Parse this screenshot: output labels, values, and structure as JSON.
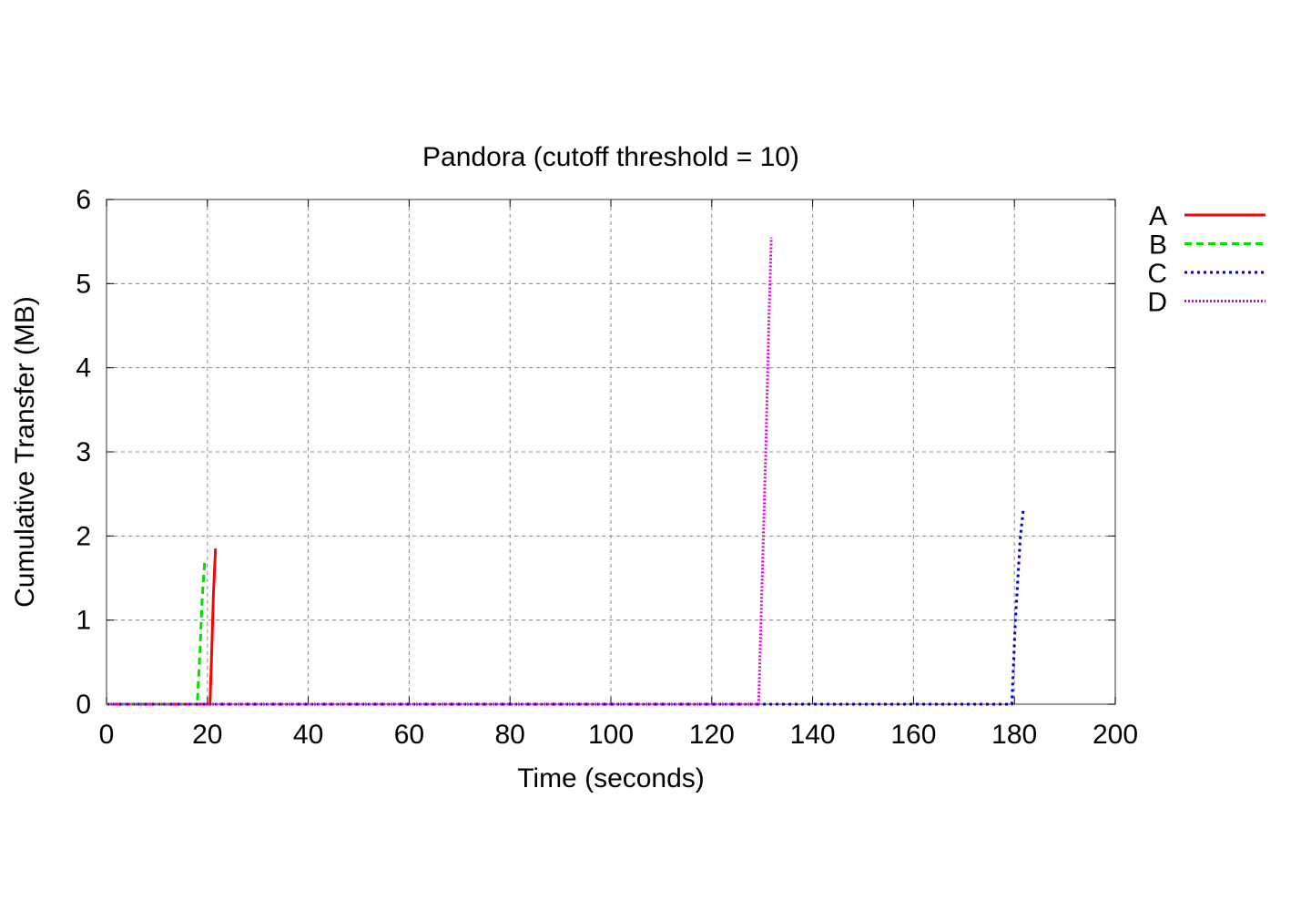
{
  "chart_data": {
    "type": "line",
    "title": "Pandora (cutoff threshold = 10)",
    "xlabel": "Time (seconds)",
    "ylabel": "Cumulative Transfer (MB)",
    "xlim": [
      0,
      200
    ],
    "ylim": [
      0,
      6
    ],
    "xticks": [
      0,
      20,
      40,
      60,
      80,
      100,
      120,
      140,
      160,
      180,
      200
    ],
    "yticks": [
      0,
      1,
      2,
      3,
      4,
      5,
      6
    ],
    "grid": true,
    "legend_position": "outside-right-top",
    "series": [
      {
        "name": "A",
        "color": "#ff0000",
        "dash": "solid",
        "x": [
          0,
          20.5,
          20.8,
          21.2,
          21.6
        ],
        "y": [
          0,
          0,
          0.5,
          1.3,
          1.85
        ]
      },
      {
        "name": "B",
        "color": "#00dd00",
        "dash": "dashed",
        "x": [
          0,
          18.0,
          18.5,
          19.0,
          19.5
        ],
        "y": [
          0,
          0,
          0.6,
          1.3,
          1.72
        ]
      },
      {
        "name": "C",
        "color": "#0000cc",
        "dash": "dotted",
        "x": [
          0,
          179.5,
          180.2,
          180.8,
          181.2,
          181.8
        ],
        "y": [
          0,
          0,
          1.0,
          1.6,
          2.0,
          2.33
        ]
      },
      {
        "name": "D",
        "color": "#dd00dd",
        "dash": "dotted-dense",
        "x": [
          0,
          129.3,
          130.0,
          130.7,
          131.3,
          131.8
        ],
        "y": [
          0,
          0,
          1.5,
          3.0,
          4.5,
          5.55
        ]
      }
    ]
  }
}
